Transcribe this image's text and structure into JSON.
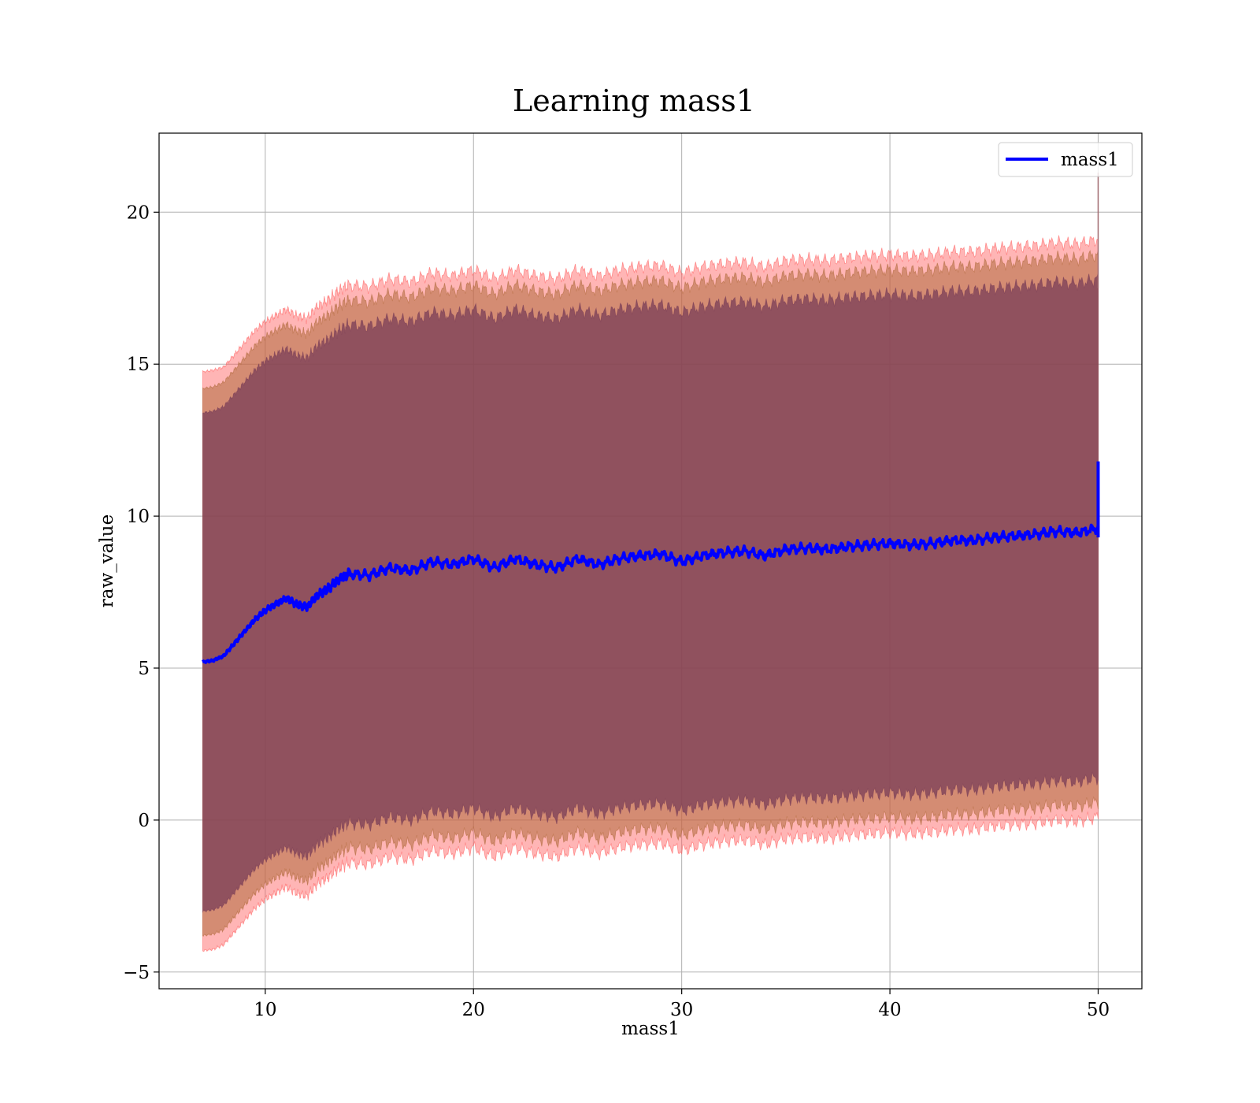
{
  "chart_data": {
    "type": "area",
    "title": "Learning mass1",
    "xlabel": "mass1",
    "ylabel": "raw_value",
    "xlim": [
      4.9,
      52.1
    ],
    "ylim": [
      -5.55,
      22.6
    ],
    "xticks": [
      10,
      20,
      30,
      40,
      50
    ],
    "yticks": [
      -5,
      0,
      5,
      10,
      15,
      20
    ],
    "xtick_labels": [
      "10",
      "20",
      "30",
      "40",
      "50"
    ],
    "ytick_labels": [
      "−5",
      "0",
      "5",
      "10",
      "15",
      "20"
    ],
    "grid": true,
    "legend": {
      "position": "top-right",
      "entries": [
        {
          "name": "mass1",
          "color": "#0000ff"
        }
      ]
    },
    "x": [
      7.0,
      7.5,
      8.0,
      8.5,
      9.0,
      9.5,
      10.0,
      10.5,
      11.0,
      11.5,
      12.0,
      12.5,
      13.0,
      13.5,
      14.0,
      15.0,
      16.0,
      17.0,
      18.0,
      19.0,
      20.0,
      21.0,
      22.0,
      23.0,
      24.0,
      25.0,
      26.0,
      27.0,
      28.0,
      29.0,
      30.0,
      31.0,
      32.0,
      33.0,
      34.0,
      35.0,
      36.0,
      37.0,
      38.0,
      39.0,
      40.0,
      41.0,
      42.0,
      43.0,
      44.0,
      45.0,
      46.0,
      47.0,
      48.0,
      49.0,
      50.0
    ],
    "series": [
      {
        "name": "mass1",
        "color": "#0000ff",
        "values": [
          5.2,
          5.25,
          5.4,
          5.8,
          6.2,
          6.6,
          6.9,
          7.1,
          7.3,
          7.1,
          7.0,
          7.4,
          7.6,
          7.9,
          8.1,
          8.05,
          8.3,
          8.2,
          8.5,
          8.4,
          8.6,
          8.3,
          8.6,
          8.4,
          8.3,
          8.6,
          8.4,
          8.6,
          8.7,
          8.75,
          8.5,
          8.7,
          8.8,
          8.85,
          8.7,
          8.9,
          8.95,
          8.9,
          9.0,
          9.05,
          9.1,
          9.05,
          9.1,
          9.2,
          9.2,
          9.3,
          9.35,
          9.4,
          9.5,
          9.45,
          9.6
        ]
      }
    ],
    "bands": [
      {
        "name": "",
        "color": "#ff5a5a",
        "opacity": 0.45,
        "upper": [
          14.75,
          14.8,
          14.9,
          15.3,
          15.7,
          16.1,
          16.4,
          16.6,
          16.8,
          16.6,
          16.5,
          16.9,
          17.1,
          17.4,
          17.6,
          17.55,
          17.8,
          17.7,
          18.0,
          17.9,
          18.1,
          17.8,
          18.1,
          17.9,
          17.8,
          18.1,
          17.9,
          18.1,
          18.2,
          18.25,
          18.0,
          18.2,
          18.3,
          18.35,
          18.2,
          18.4,
          18.45,
          18.4,
          18.5,
          18.55,
          18.6,
          18.55,
          18.6,
          18.7,
          18.7,
          18.8,
          18.85,
          18.9,
          19.0,
          18.95,
          19.1
        ],
        "lower": [
          -4.3,
          -4.25,
          -4.1,
          -3.7,
          -3.3,
          -2.9,
          -2.6,
          -2.4,
          -2.2,
          -2.4,
          -2.5,
          -2.1,
          -1.9,
          -1.6,
          -1.4,
          -1.45,
          -1.2,
          -1.3,
          -1.0,
          -1.1,
          -0.9,
          -1.2,
          -0.9,
          -1.1,
          -1.2,
          -0.9,
          -1.1,
          -0.9,
          -0.8,
          -0.75,
          -1.0,
          -0.8,
          -0.7,
          -0.65,
          -0.8,
          -0.6,
          -0.55,
          -0.6,
          -0.5,
          -0.45,
          -0.4,
          -0.45,
          -0.4,
          -0.3,
          -0.3,
          -0.2,
          -0.15,
          -0.1,
          0.0,
          -0.05,
          0.1
        ]
      },
      {
        "name": "",
        "color": "#b06a3c",
        "opacity": 0.55,
        "upper": [
          14.2,
          14.25,
          14.4,
          14.8,
          15.2,
          15.6,
          15.9,
          16.1,
          16.3,
          16.1,
          16.0,
          16.4,
          16.6,
          16.9,
          17.1,
          17.05,
          17.3,
          17.2,
          17.5,
          17.4,
          17.6,
          17.3,
          17.6,
          17.4,
          17.3,
          17.6,
          17.4,
          17.6,
          17.7,
          17.75,
          17.5,
          17.7,
          17.8,
          17.85,
          17.7,
          17.9,
          17.95,
          17.9,
          18.0,
          18.05,
          18.1,
          18.05,
          18.1,
          18.2,
          18.2,
          18.3,
          18.35,
          18.4,
          18.5,
          18.45,
          18.6
        ],
        "lower": [
          -3.8,
          -3.75,
          -3.6,
          -3.2,
          -2.8,
          -2.4,
          -2.1,
          -1.9,
          -1.7,
          -1.9,
          -2.0,
          -1.6,
          -1.4,
          -1.1,
          -0.9,
          -0.95,
          -0.7,
          -0.8,
          -0.5,
          -0.6,
          -0.4,
          -0.7,
          -0.4,
          -0.6,
          -0.7,
          -0.4,
          -0.6,
          -0.4,
          -0.3,
          -0.25,
          -0.5,
          -0.3,
          -0.2,
          -0.15,
          -0.3,
          -0.1,
          -0.05,
          -0.1,
          0.0,
          0.05,
          0.1,
          0.05,
          0.1,
          0.2,
          0.2,
          0.3,
          0.35,
          0.4,
          0.5,
          0.45,
          0.6
        ]
      },
      {
        "name": "",
        "color": "#7a3e57",
        "opacity": 0.75,
        "upper": [
          13.4,
          13.45,
          13.6,
          14.0,
          14.4,
          14.8,
          15.1,
          15.3,
          15.5,
          15.3,
          15.2,
          15.6,
          15.8,
          16.1,
          16.3,
          16.25,
          16.5,
          16.4,
          16.7,
          16.6,
          16.8,
          16.5,
          16.8,
          16.6,
          16.5,
          16.8,
          16.6,
          16.8,
          16.9,
          16.95,
          16.7,
          16.9,
          17.0,
          17.05,
          16.9,
          17.1,
          17.15,
          17.1,
          17.2,
          17.25,
          17.3,
          17.25,
          17.3,
          17.4,
          17.4,
          17.5,
          17.55,
          17.6,
          17.7,
          17.65,
          17.8
        ],
        "lower": [
          -3.0,
          -2.95,
          -2.8,
          -2.4,
          -2.0,
          -1.6,
          -1.3,
          -1.1,
          -0.9,
          -1.1,
          -1.2,
          -0.8,
          -0.6,
          -0.3,
          -0.1,
          -0.15,
          0.1,
          0.0,
          0.3,
          0.2,
          0.4,
          0.1,
          0.4,
          0.2,
          0.1,
          0.4,
          0.2,
          0.4,
          0.5,
          0.55,
          0.3,
          0.5,
          0.6,
          0.65,
          0.5,
          0.7,
          0.75,
          0.7,
          0.8,
          0.85,
          0.9,
          0.85,
          0.9,
          1.0,
          1.0,
          1.1,
          1.15,
          1.2,
          1.3,
          1.25,
          1.4
        ]
      }
    ],
    "final_spike": {
      "x": 50.0,
      "y_top": 11.8,
      "y_bottom": 9.3
    }
  }
}
